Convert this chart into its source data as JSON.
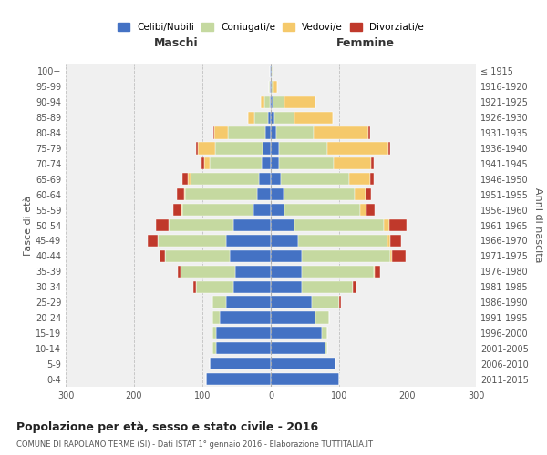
{
  "age_groups": [
    "0-4",
    "5-9",
    "10-14",
    "15-19",
    "20-24",
    "25-29",
    "30-34",
    "35-39",
    "40-44",
    "45-49",
    "50-54",
    "55-59",
    "60-64",
    "65-69",
    "70-74",
    "75-79",
    "80-84",
    "85-89",
    "90-94",
    "95-99",
    "100+"
  ],
  "birth_years": [
    "2011-2015",
    "2006-2010",
    "2001-2005",
    "1996-2000",
    "1991-1995",
    "1986-1990",
    "1981-1985",
    "1976-1980",
    "1971-1975",
    "1966-1970",
    "1961-1965",
    "1956-1960",
    "1951-1955",
    "1946-1950",
    "1941-1945",
    "1936-1940",
    "1931-1935",
    "1926-1930",
    "1921-1925",
    "1916-1920",
    "≤ 1915"
  ],
  "maschi": {
    "celibi": [
      95,
      90,
      80,
      80,
      75,
      65,
      55,
      52,
      60,
      65,
      55,
      25,
      20,
      17,
      14,
      12,
      8,
      4,
      2,
      1,
      1
    ],
    "coniugati": [
      0,
      0,
      5,
      5,
      10,
      20,
      55,
      80,
      95,
      100,
      95,
      105,
      105,
      100,
      75,
      70,
      55,
      20,
      8,
      2,
      1
    ],
    "vedovi": [
      0,
      0,
      0,
      0,
      0,
      0,
      0,
      0,
      0,
      0,
      0,
      1,
      2,
      4,
      8,
      25,
      20,
      10,
      5,
      0,
      0
    ],
    "divorziati": [
      0,
      0,
      0,
      0,
      0,
      2,
      3,
      4,
      8,
      15,
      18,
      12,
      10,
      8,
      5,
      2,
      1,
      0,
      0,
      0,
      0
    ]
  },
  "femmine": {
    "nubili": [
      100,
      95,
      80,
      75,
      65,
      60,
      45,
      45,
      45,
      40,
      35,
      20,
      18,
      15,
      12,
      12,
      8,
      5,
      2,
      1,
      1
    ],
    "coniugate": [
      0,
      0,
      2,
      8,
      20,
      40,
      75,
      105,
      130,
      130,
      130,
      110,
      105,
      100,
      80,
      70,
      55,
      30,
      18,
      3,
      1
    ],
    "vedove": [
      0,
      0,
      0,
      0,
      0,
      0,
      0,
      2,
      2,
      5,
      8,
      10,
      15,
      30,
      55,
      90,
      80,
      55,
      45,
      5,
      1
    ],
    "divorziate": [
      0,
      0,
      0,
      0,
      0,
      3,
      5,
      8,
      20,
      15,
      25,
      12,
      8,
      5,
      4,
      2,
      2,
      0,
      0,
      0,
      0
    ]
  },
  "colors": {
    "celibi": "#4472C4",
    "coniugati": "#C5D9A0",
    "vedovi": "#F5C96B",
    "divorziati": "#C0392B"
  },
  "xlim": 300,
  "title": "Popolazione per età, sesso e stato civile - 2016",
  "subtitle": "COMUNE DI RAPOLANO TERME (SI) - Dati ISTAT 1° gennaio 2016 - Elaborazione TUTTITALIA.IT",
  "ylabel_left": "Fasce di età",
  "ylabel_right": "Anni di nascita",
  "xlabel_left": "Maschi",
  "xlabel_right": "Femmine",
  "bg_color": "#f0f0f0",
  "grid_color": "#bbbbbb"
}
